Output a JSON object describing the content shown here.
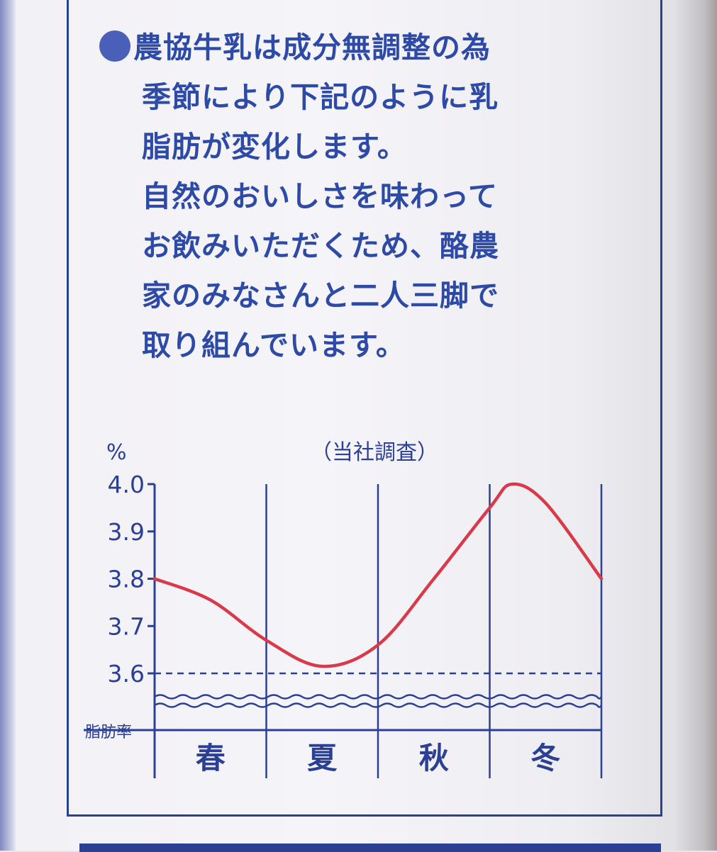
{
  "description": {
    "lines": [
      "農協牛乳は成分無調整の為",
      "季節により下記のように乳",
      "脂肪が変化します。",
      "自然のおいしさを味わって",
      "お飲みいただくため、酪農",
      "家のみなさんと二人三脚で",
      "取り組んでいます。"
    ]
  },
  "colors": {
    "ink": "#2b3f93",
    "text": "#2d4aa6",
    "curve": "#d93a4a"
  },
  "chart_data": {
    "type": "line",
    "note": "（当社調査）",
    "y_unit": "%",
    "ylabel": "脂肪率",
    "ylim": [
      3.6,
      4.0
    ],
    "yticks": [
      "4.0",
      "3.9",
      "3.8",
      "3.7",
      "3.6"
    ],
    "categories": [
      "春",
      "夏",
      "秋",
      "冬"
    ],
    "grid": false,
    "baseline_dashed": 3.6,
    "series": [
      {
        "x": [
          0.0,
          0.5,
          1.0,
          1.5,
          2.0,
          2.5,
          3.0,
          3.2,
          3.5,
          4.0
        ],
        "values": [
          3.8,
          3.755,
          3.67,
          3.615,
          3.66,
          3.8,
          3.95,
          4.0,
          3.96,
          3.8
        ]
      }
    ]
  }
}
